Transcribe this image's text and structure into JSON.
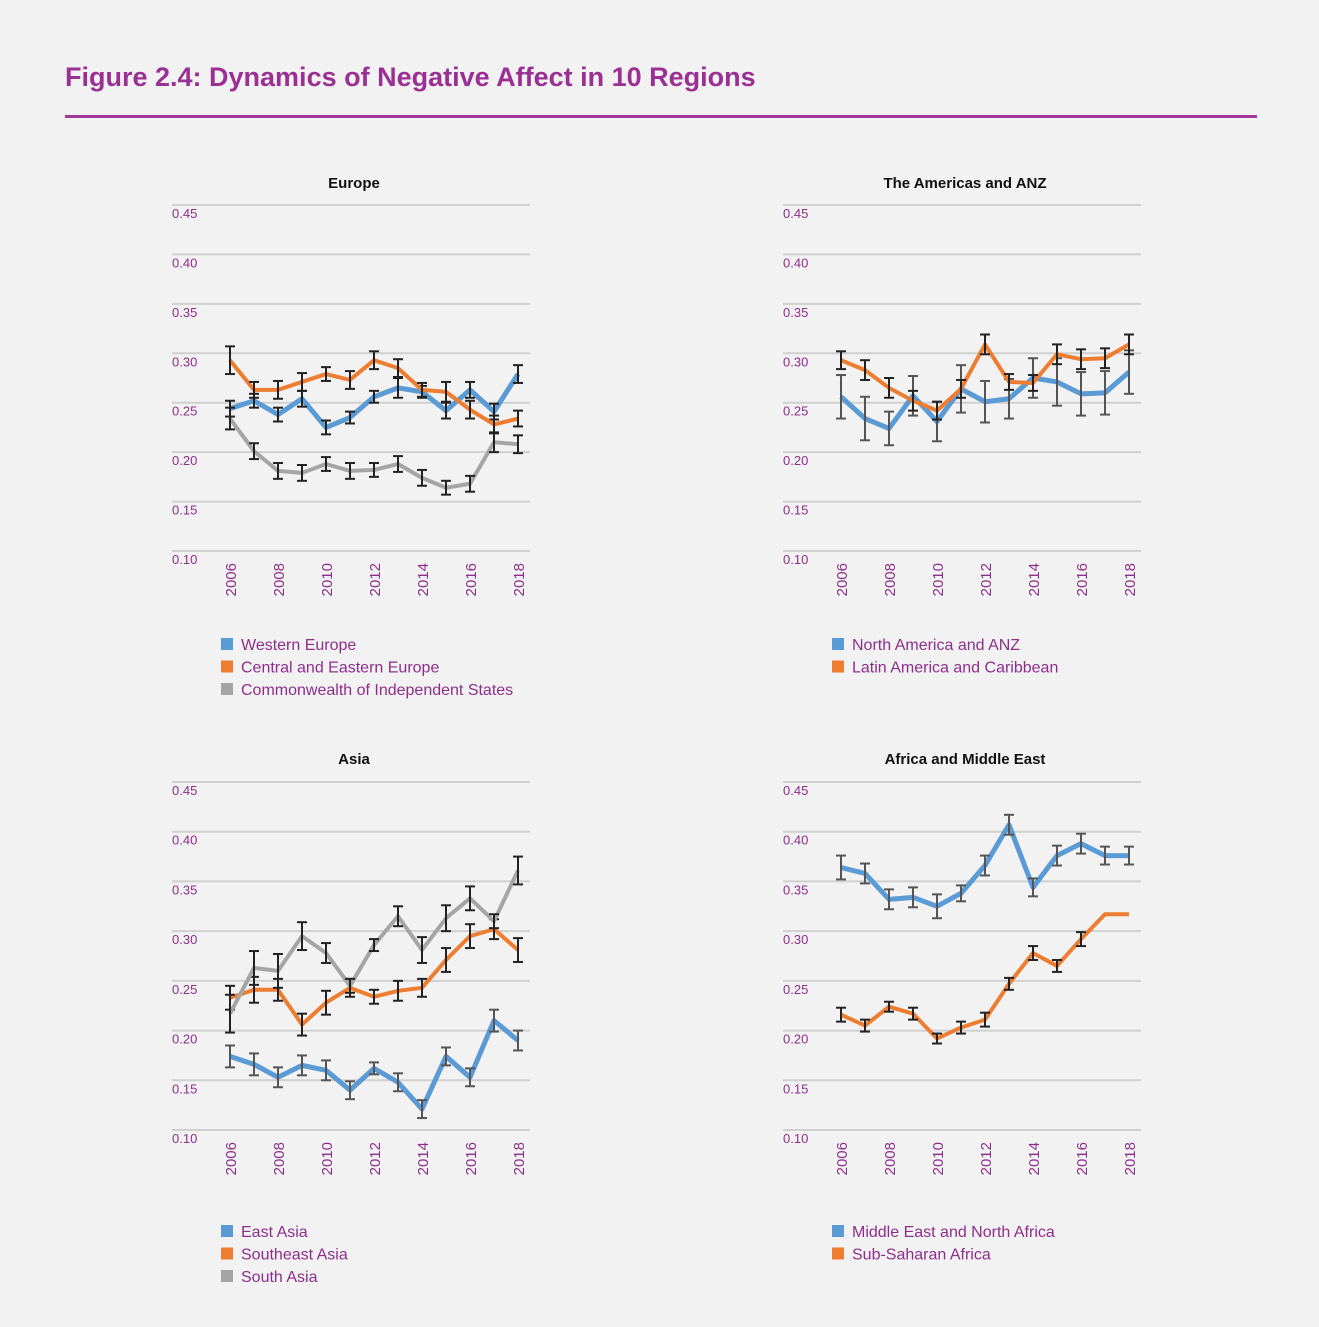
{
  "title": "Figure 2.4: Dynamics of Negative Affect in 10 Regions",
  "colors": {
    "title": "#9b3094",
    "text": "#8e2e8c",
    "blue": "#5b9bd5",
    "orange": "#ed7d31",
    "gray": "#a5a5a5",
    "grid": "#d0d0d0"
  },
  "chart_data": [
    {
      "type": "line",
      "title": "Europe",
      "x": [
        2006,
        2007,
        2008,
        2009,
        2010,
        2011,
        2012,
        2013,
        2014,
        2015,
        2016,
        2017,
        2018
      ],
      "xticks": [
        "2006",
        "2008",
        "2010",
        "2012",
        "2014",
        "2016",
        "2018"
      ],
      "yticks": [
        "0.10",
        "0.15",
        "0.20",
        "0.25",
        "0.30",
        "0.35",
        "0.40",
        "0.45"
      ],
      "ylim": [
        0.1,
        0.45
      ],
      "grid": true,
      "legend": "bottom",
      "series": [
        {
          "name": "Western Europe",
          "color": "#5b9bd5",
          "errcolor": "#222",
          "values": [
            0.244,
            0.252,
            0.238,
            0.254,
            0.225,
            0.235,
            0.256,
            0.265,
            0.261,
            0.242,
            0.263,
            0.241,
            0.279
          ],
          "error": [
            0.008,
            0.007,
            0.007,
            0.008,
            0.007,
            0.006,
            0.006,
            0.01,
            0.006,
            0.008,
            0.008,
            0.008,
            0.009
          ]
        },
        {
          "name": "Central and Eastern Europe",
          "color": "#ed7d31",
          "errcolor": "#222",
          "values": [
            0.293,
            0.263,
            0.263,
            0.271,
            0.279,
            0.273,
            0.293,
            0.285,
            0.263,
            0.261,
            0.243,
            0.228,
            0.234
          ],
          "error": [
            0.014,
            0.008,
            0.009,
            0.009,
            0.007,
            0.009,
            0.009,
            0.009,
            0.007,
            0.01,
            0.009,
            0.009,
            0.008
          ]
        },
        {
          "name": "Commonwealth of Independent States",
          "color": "#a5a5a5",
          "errcolor": "#222",
          "values": [
            0.234,
            0.201,
            0.181,
            0.179,
            0.188,
            0.181,
            0.182,
            0.188,
            0.174,
            0.164,
            0.168,
            0.21,
            0.208
          ],
          "error": [
            0.011,
            0.008,
            0.008,
            0.008,
            0.007,
            0.008,
            0.007,
            0.008,
            0.008,
            0.007,
            0.008,
            0.01,
            0.009
          ]
        }
      ]
    },
    {
      "type": "line",
      "title": "The Americas and ANZ",
      "x": [
        2006,
        2007,
        2008,
        2009,
        2010,
        2011,
        2012,
        2013,
        2014,
        2015,
        2016,
        2017,
        2018
      ],
      "xticks": [
        "2006",
        "2008",
        "2010",
        "2012",
        "2014",
        "2016",
        "2018"
      ],
      "yticks": [
        "0.10",
        "0.15",
        "0.20",
        "0.25",
        "0.30",
        "0.35",
        "0.40",
        "0.45"
      ],
      "ylim": [
        0.1,
        0.45
      ],
      "grid": true,
      "legend": "bottom",
      "series": [
        {
          "name": "North America and ANZ",
          "color": "#5b9bd5",
          "errcolor": "#555",
          "values": [
            0.256,
            0.234,
            0.224,
            0.257,
            0.231,
            0.264,
            0.251,
            0.254,
            0.275,
            0.271,
            0.259,
            0.26,
            0.281
          ],
          "error": [
            0.022,
            0.022,
            0.017,
            0.02,
            0.02,
            0.024,
            0.021,
            0.02,
            0.02,
            0.024,
            0.022,
            0.022,
            0.022
          ]
        },
        {
          "name": "Latin America and Caribbean",
          "color": "#ed7d31",
          "errcolor": "#222",
          "values": [
            0.293,
            0.283,
            0.265,
            0.252,
            0.242,
            0.264,
            0.309,
            0.271,
            0.27,
            0.299,
            0.294,
            0.295,
            0.309
          ],
          "error": [
            0.009,
            0.01,
            0.01,
            0.01,
            0.009,
            0.009,
            0.01,
            0.008,
            0.008,
            0.01,
            0.01,
            0.01,
            0.01
          ]
        }
      ]
    },
    {
      "type": "line",
      "title": "Asia",
      "x": [
        2006,
        2007,
        2008,
        2009,
        2010,
        2011,
        2012,
        2013,
        2014,
        2015,
        2016,
        2017,
        2018
      ],
      "xticks": [
        "2006",
        "2008",
        "2010",
        "2012",
        "2014",
        "2016",
        "2018"
      ],
      "yticks": [
        "0.10",
        "0.15",
        "0.20",
        "0.25",
        "0.30",
        "0.35",
        "0.40",
        "0.45"
      ],
      "ylim": [
        0.1,
        0.45
      ],
      "grid": true,
      "legend": "bottom",
      "series": [
        {
          "name": "East Asia",
          "color": "#5b9bd5",
          "errcolor": "#555",
          "values": [
            0.174,
            0.166,
            0.153,
            0.165,
            0.16,
            0.14,
            0.162,
            0.148,
            0.121,
            0.174,
            0.153,
            0.21,
            0.19
          ],
          "error": [
            0.011,
            0.011,
            0.01,
            0.01,
            0.01,
            0.009,
            0.006,
            0.009,
            0.009,
            0.009,
            0.009,
            0.011,
            0.01
          ]
        },
        {
          "name": "Southeast Asia",
          "color": "#ed7d31",
          "errcolor": "#222",
          "values": [
            0.233,
            0.241,
            0.241,
            0.206,
            0.228,
            0.243,
            0.234,
            0.24,
            0.243,
            0.271,
            0.295,
            0.302,
            0.281
          ],
          "error": [
            0.012,
            0.013,
            0.011,
            0.011,
            0.012,
            0.009,
            0.007,
            0.01,
            0.009,
            0.012,
            0.012,
            0.01,
            0.012
          ]
        },
        {
          "name": "South Asia",
          "color": "#a5a5a5",
          "errcolor": "#222",
          "values": [
            0.217,
            0.263,
            0.26,
            0.295,
            0.278,
            0.245,
            0.286,
            0.315,
            0.281,
            0.313,
            0.333,
            0.31,
            0.361
          ],
          "error": [
            0.019,
            0.017,
            0.017,
            0.014,
            0.01,
            0.007,
            0.006,
            0.01,
            0.013,
            0.013,
            0.012,
            0.007,
            0.014
          ]
        }
      ]
    },
    {
      "type": "line",
      "title": "Africa and Middle East",
      "x": [
        2006,
        2007,
        2008,
        2009,
        2010,
        2011,
        2012,
        2013,
        2014,
        2015,
        2016,
        2017,
        2018
      ],
      "xticks": [
        "2006",
        "2008",
        "2010",
        "2012",
        "2014",
        "2016",
        "2018"
      ],
      "yticks": [
        "0.10",
        "0.15",
        "0.20",
        "0.25",
        "0.30",
        "0.35",
        "0.40",
        "0.45"
      ],
      "ylim": [
        0.1,
        0.45
      ],
      "grid": true,
      "legend": "bottom",
      "series": [
        {
          "name": "Middle East and North Africa",
          "color": "#5b9bd5",
          "errcolor": "#555",
          "values": [
            0.364,
            0.358,
            0.332,
            0.334,
            0.325,
            0.338,
            0.366,
            0.407,
            0.344,
            0.376,
            0.388,
            0.376,
            0.376
          ],
          "error": [
            0.012,
            0.01,
            0.01,
            0.01,
            0.012,
            0.008,
            0.01,
            0.01,
            0.009,
            0.01,
            0.01,
            0.009,
            0.009
          ]
        },
        {
          "name": "Sub-Saharan Africa",
          "color": "#ed7d31",
          "errcolor": "#222",
          "values": [
            0.216,
            0.205,
            0.224,
            0.217,
            0.192,
            0.203,
            0.211,
            0.247,
            0.278,
            0.265,
            0.292,
            0.317,
            0.317
          ],
          "error": [
            0.007,
            0.006,
            0.005,
            0.006,
            0.005,
            0.006,
            0.007,
            0.006,
            0.007,
            0.006,
            0.007,
            0,
            0
          ]
        }
      ]
    }
  ]
}
